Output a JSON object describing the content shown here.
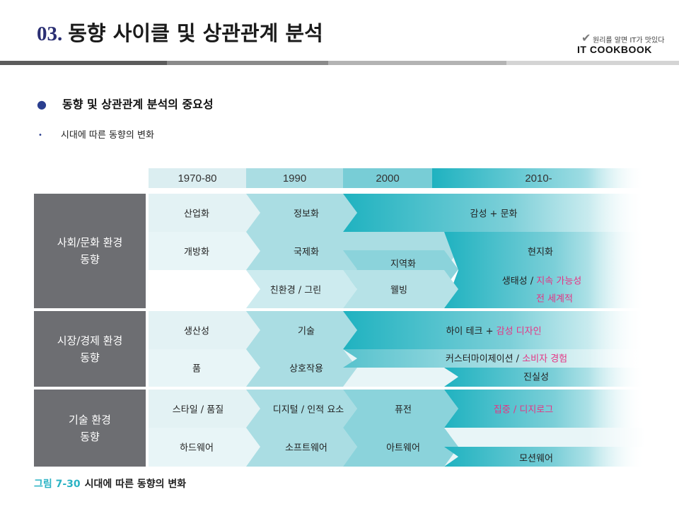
{
  "header": {
    "section_number": "03.",
    "title": "동향 사이클 및 상관관계 분석",
    "logo_tagline": "원리를 알면 IT가 맛있다",
    "logo_brand": "IT COOKBOOK"
  },
  "bullets": {
    "primary": "동향 및 상관관계 분석의 중요성",
    "secondary": "시대에 따른 동향의 변화"
  },
  "diagram": {
    "periods": [
      "1970-80",
      "1990",
      "2000",
      "2010-"
    ],
    "categories": [
      {
        "label": "사회/문화 환경\n동향"
      },
      {
        "label": "시장/경제 환경\n동향"
      },
      {
        "label": "기술 환경\n동향"
      }
    ],
    "society": {
      "industrial": "산업화",
      "information": "정보화",
      "emotion_culture": "감성 + 문화",
      "opening": "개방화",
      "internationalization": "국제화",
      "localization": "현지화",
      "regionalization": "지역화",
      "eco_green": "친환경 / 그린",
      "wellbeing": "웰빙",
      "ecological": "생태성",
      "sep": " / ",
      "sustainability": "지속 가능성",
      "global": "전 세계적"
    },
    "market": {
      "productivity": "생산성",
      "technology": "기술",
      "hightech": "하이 테크 + ",
      "emotional_design": "감성 디자인",
      "product": "품",
      "interaction": "상호작용",
      "customization": "커스터마이제이션 / ",
      "consumer_experience": "소비자 경험",
      "authenticity": "진실성"
    },
    "tech": {
      "style_quality": "스타일 / 품질",
      "digital_human": "디지털 / 인적 요소",
      "fusion": "퓨전",
      "concentration_digilog": "집중 / 디지로그",
      "hardware": "하드웨어",
      "software": "소프트웨어",
      "artware": "아트웨어",
      "motionware": "모션웨어"
    },
    "colors": {
      "category_gray": "#6d6e72",
      "teal_dark": "#1fb2c0",
      "teal_light": "#bfe5ea",
      "highlight_pink": "#e63383"
    }
  },
  "caption": {
    "figure": "그림 7-30",
    "text": "시대에 따른 동향의 변화"
  }
}
